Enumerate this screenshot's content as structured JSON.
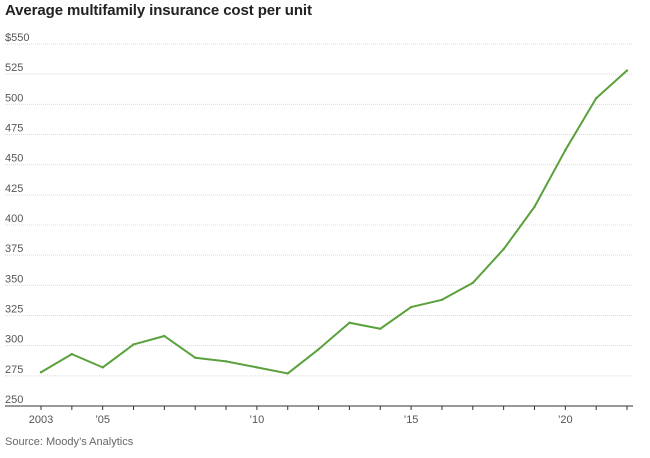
{
  "title": "Average multifamily insurance cost per unit",
  "source": "Source: Moody’s Analytics",
  "colors": {
    "line": "#5aa13c",
    "grid": "#d9d9d9",
    "axis": "#333333",
    "text": "#555555"
  },
  "chart_data": {
    "type": "line",
    "title": "Average multifamily insurance cost per unit",
    "xlabel": "",
    "ylabel": "",
    "xlim": [
      2003,
      2022
    ],
    "ylim": [
      250,
      550
    ],
    "grid": true,
    "y_ticks": [
      {
        "value": 550,
        "label": "$550"
      },
      {
        "value": 525,
        "label": "525"
      },
      {
        "value": 500,
        "label": "500"
      },
      {
        "value": 475,
        "label": "475"
      },
      {
        "value": 450,
        "label": "450"
      },
      {
        "value": 425,
        "label": "425"
      },
      {
        "value": 400,
        "label": "400"
      },
      {
        "value": 375,
        "label": "375"
      },
      {
        "value": 350,
        "label": "350"
      },
      {
        "value": 325,
        "label": "325"
      },
      {
        "value": 300,
        "label": "300"
      },
      {
        "value": 275,
        "label": "275"
      },
      {
        "value": 250,
        "label": "250"
      }
    ],
    "x_ticks": [
      {
        "value": 2003,
        "label": "2003"
      },
      {
        "value": 2005,
        "label": "’05"
      },
      {
        "value": 2010,
        "label": "’10"
      },
      {
        "value": 2015,
        "label": "’15"
      },
      {
        "value": 2020,
        "label": "’20"
      }
    ],
    "x_minor_ticks": [
      2003,
      2004,
      2005,
      2006,
      2007,
      2008,
      2009,
      2010,
      2011,
      2012,
      2013,
      2014,
      2015,
      2016,
      2017,
      2018,
      2019,
      2020,
      2021,
      2022
    ],
    "series": [
      {
        "x": [
          2003,
          2004,
          2005,
          2006,
          2007,
          2008,
          2009,
          2010,
          2011,
          2012,
          2013,
          2014,
          2015,
          2016,
          2017,
          2018,
          2019,
          2020,
          2021,
          2022
        ],
        "values": [
          278,
          293,
          282,
          301,
          308,
          290,
          287,
          282,
          277,
          297,
          319,
          314,
          332,
          338,
          352,
          380,
          415,
          462,
          505,
          528
        ]
      }
    ]
  }
}
